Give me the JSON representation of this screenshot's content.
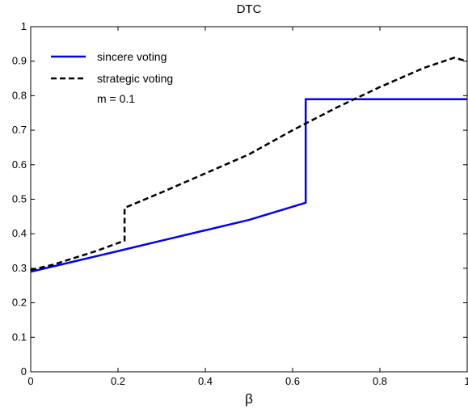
{
  "chart_data": {
    "type": "line",
    "title": "DTC",
    "xlabel": "β",
    "ylabel": "",
    "xlim": [
      0,
      1
    ],
    "ylim": [
      0,
      1
    ],
    "xticks": [
      0,
      0.2,
      0.4,
      0.6,
      0.8,
      1
    ],
    "xtick_labels": [
      "0",
      "0.2",
      "0.4",
      "0.6",
      "0.8",
      "1"
    ],
    "yticks": [
      0,
      0.1,
      0.2,
      0.3,
      0.4,
      0.5,
      0.6,
      0.7,
      0.8,
      0.9,
      1
    ],
    "ytick_labels": [
      "0",
      "0.1",
      "0.2",
      "0.3",
      "0.4",
      "0.5",
      "0.6",
      "0.7",
      "0.8",
      "0.9",
      "1"
    ],
    "grid": false,
    "legend_position": "top-left",
    "annotation": "m = 0.1",
    "series": [
      {
        "name": "sincere voting",
        "color": "#0000ff",
        "style": "solid",
        "x": [
          0,
          0.1,
          0.2,
          0.3,
          0.4,
          0.5,
          0.63,
          0.63,
          0.7,
          0.8,
          0.9,
          1.0
        ],
        "y": [
          0.29,
          0.32,
          0.35,
          0.38,
          0.41,
          0.44,
          0.49,
          0.79,
          0.79,
          0.79,
          0.79,
          0.79
        ]
      },
      {
        "name": "strategic voting",
        "color": "#000000",
        "style": "dashed",
        "x": [
          0,
          0.05,
          0.1,
          0.15,
          0.215,
          0.215,
          0.3,
          0.4,
          0.5,
          0.6,
          0.7,
          0.8,
          0.9,
          0.97,
          1.0
        ],
        "y": [
          0.295,
          0.31,
          0.33,
          0.35,
          0.38,
          0.475,
          0.52,
          0.575,
          0.63,
          0.7,
          0.765,
          0.825,
          0.88,
          0.91,
          0.9
        ]
      }
    ]
  }
}
